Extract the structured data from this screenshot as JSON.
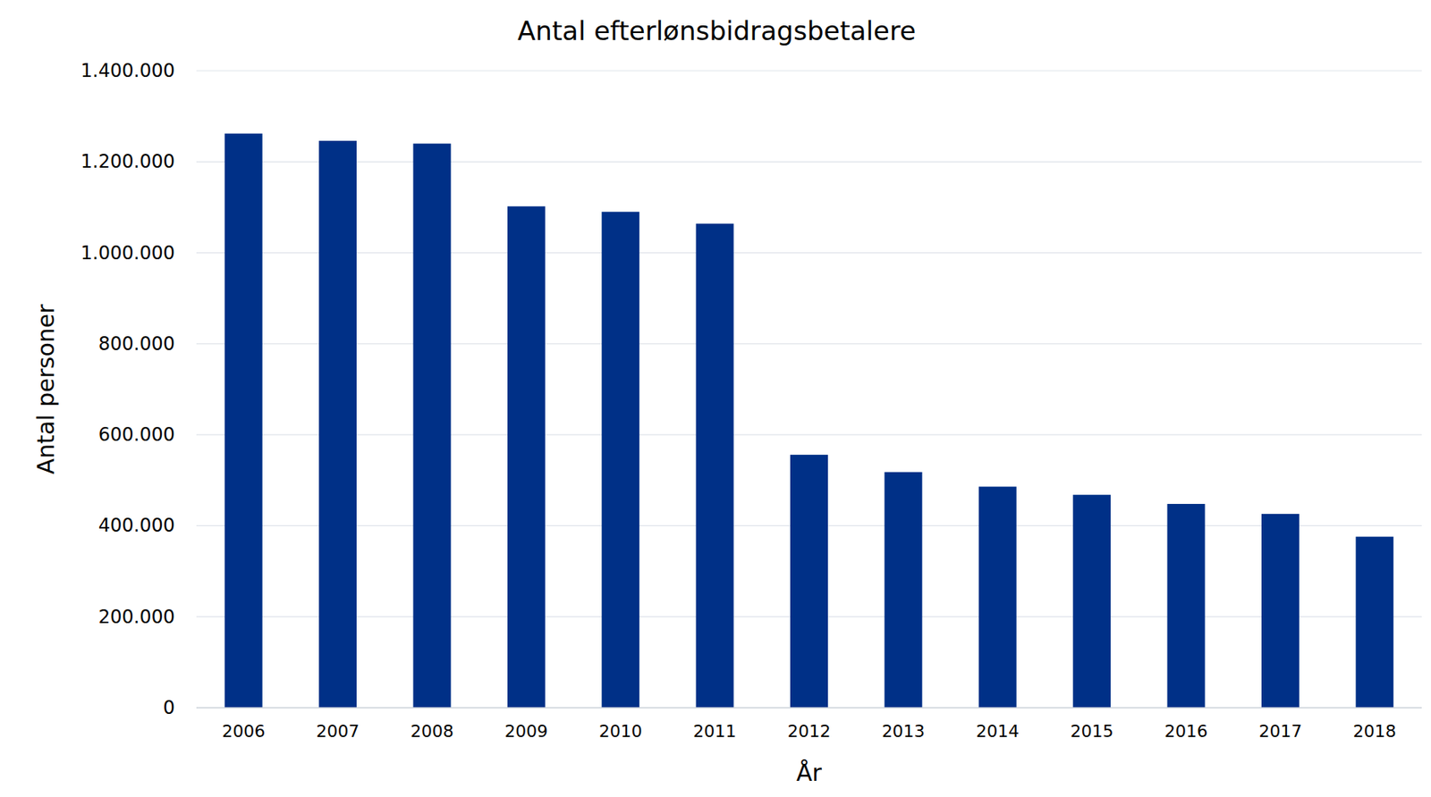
{
  "chart_data": {
    "type": "bar",
    "title": "Antal efterlønsbidragsbetalere",
    "x_label": "År",
    "y_label": "Antal personer",
    "categories": [
      "2006",
      "2007",
      "2008",
      "2009",
      "2010",
      "2011",
      "2012",
      "2013",
      "2014",
      "2015",
      "2016",
      "2017",
      "2018"
    ],
    "values": [
      1262000,
      1246000,
      1240000,
      1102000,
      1090000,
      1064000,
      556000,
      518000,
      486000,
      468000,
      448000,
      426000,
      376000
    ],
    "color": "#003087",
    "ylim": [
      0,
      1400000
    ],
    "yticks": [
      0,
      {
        "value": 200000,
        "label": "200.000"
      },
      {
        "value": 400000,
        "label": "400.000"
      },
      {
        "value": 600000,
        "label": "600.000"
      },
      {
        "value": 800000,
        "label": "800.000"
      },
      {
        "value": 1000000,
        "label": "1.000.000"
      },
      {
        "value": 1200000,
        "label": "1.200.000"
      },
      {
        "value": 1400000,
        "label": "1.400.000"
      }
    ],
    "grid": true
  }
}
